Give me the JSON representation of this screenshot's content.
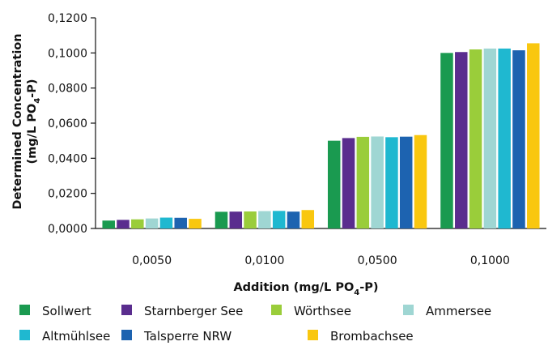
{
  "chart_data": {
    "type": "bar",
    "categories": [
      "0,0050",
      "0,0100",
      "0,0500",
      "0,1000"
    ],
    "series": [
      {
        "name": "Sollwert",
        "color": "#1a9a50",
        "values": [
          0.0045,
          0.0095,
          0.05,
          0.1
        ]
      },
      {
        "name": "Starnberger See",
        "color": "#5a2d8e",
        "values": [
          0.0049,
          0.0096,
          0.0515,
          0.1005
        ]
      },
      {
        "name": "Wörthsee",
        "color": "#9acd3a",
        "values": [
          0.0052,
          0.0097,
          0.0522,
          0.102
        ]
      },
      {
        "name": "Ammersee",
        "color": "#9fd6d3",
        "values": [
          0.0057,
          0.0099,
          0.0524,
          0.1025
        ]
      },
      {
        "name": "Altmühlsee",
        "color": "#1fb8d0",
        "values": [
          0.0062,
          0.01,
          0.052,
          0.1025
        ]
      },
      {
        "name": "Talsperre NRW",
        "color": "#1d63b0",
        "values": [
          0.0061,
          0.0096,
          0.0523,
          0.1015
        ]
      },
      {
        "name": "Brombachsee",
        "color": "#f9c70f",
        "values": [
          0.0055,
          0.0105,
          0.0532,
          0.1055
        ]
      }
    ],
    "yticks": [
      "0,0000",
      "0,0200",
      "0,0400",
      "0,0600",
      "0,0800",
      "0,1000",
      "0,1200"
    ],
    "ylim": [
      0,
      0.12
    ],
    "ylabel_line1": "Determined Concentration",
    "ylabel_line2_pre": "(mg/L PO",
    "ylabel_line2_sub": "4",
    "ylabel_line2_post": "-P)",
    "xlabel_pre": "Addition (mg/L PO",
    "xlabel_sub": "4",
    "xlabel_post": "-P)",
    "grid": false,
    "legend": "bottom"
  }
}
